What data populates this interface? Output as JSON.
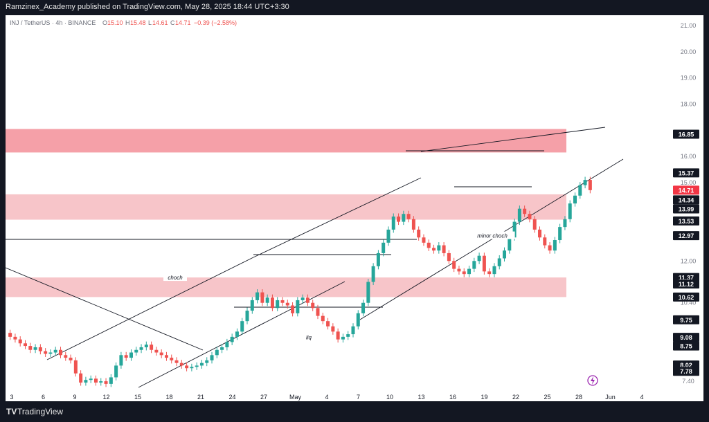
{
  "header": {
    "published_text": "Ramzinex_Academy published on TradingView.com, May 28, 2025 18:44 UTC+3:30"
  },
  "footer": {
    "brand_icon": "TV",
    "brand_text": "TradingView"
  },
  "symbol": {
    "pair": "INJ / TetherUS · 4h · BINANCE",
    "open_label": "O",
    "open": "15.10",
    "high_label": "H",
    "high": "15.48",
    "low_label": "L",
    "low": "14.61",
    "close_label": "C",
    "close": "14.71",
    "change": "−0.39 (−2.58%)"
  },
  "colors": {
    "up": "#26a69a",
    "down": "#ef5350",
    "zone": "#f7c5c9",
    "zone_strong": "#f5a0a8",
    "badge_dark": "#131722",
    "badge_red": "#f23645"
  },
  "chart_data": {
    "type": "candlestick",
    "interval": "4h",
    "x_ticks": [
      "3",
      "6",
      "9",
      "12",
      "15",
      "18",
      "21",
      "24",
      "27",
      "May",
      "4",
      "7",
      "10",
      "13",
      "16",
      "19",
      "22",
      "25",
      "28",
      "Jun",
      "4"
    ],
    "y_ticks": [
      "21.00",
      "20.00",
      "19.00",
      "18.00",
      "16.00",
      "15.00",
      "12.00",
      "10.40",
      "7.40"
    ],
    "ylim": [
      6.9,
      21.4
    ],
    "price_labels": [
      {
        "value": 16.85,
        "text": "16.85",
        "style": "dark"
      },
      {
        "value": 15.37,
        "text": "15.37",
        "style": "dark"
      },
      {
        "value": 14.71,
        "text": "14.71",
        "style": "red"
      },
      {
        "value": 14.34,
        "text": "14.34",
        "style": "dark"
      },
      {
        "value": 13.99,
        "text": "13.99",
        "style": "dark"
      },
      {
        "value": 13.53,
        "text": "13.53",
        "style": "dark"
      },
      {
        "value": 12.97,
        "text": "12.97",
        "style": "dark"
      },
      {
        "value": 11.37,
        "text": "11.37",
        "style": "dark"
      },
      {
        "value": 11.12,
        "text": "11.12",
        "style": "dark"
      },
      {
        "value": 10.62,
        "text": "10.62",
        "style": "dark"
      },
      {
        "value": 9.75,
        "text": "9.75",
        "style": "dark"
      },
      {
        "value": 9.08,
        "text": "9.08",
        "style": "dark"
      },
      {
        "value": 8.75,
        "text": "8.75",
        "style": "dark"
      },
      {
        "value": 8.02,
        "text": "8.02",
        "style": "dark"
      },
      {
        "value": 7.78,
        "text": "7.78",
        "style": "dark"
      }
    ],
    "zones": [
      {
        "low": 16.15,
        "high": 17.05,
        "style": "strong"
      },
      {
        "low": 13.58,
        "high": 14.55,
        "style": "light"
      },
      {
        "low": 10.62,
        "high": 11.37,
        "style": "light"
      }
    ],
    "annotations": [
      {
        "text": "choch",
        "price": 11.37
      },
      {
        "text": "liq",
        "price": 9.08
      },
      {
        "text": "minor choch",
        "price": 12.97
      }
    ],
    "closes": [
      9.1,
      9.0,
      8.85,
      8.75,
      8.6,
      8.7,
      8.55,
      8.45,
      8.5,
      8.6,
      8.4,
      8.3,
      8.2,
      7.7,
      7.35,
      7.45,
      7.5,
      7.35,
      7.4,
      7.3,
      7.55,
      8.0,
      8.4,
      8.3,
      8.5,
      8.6,
      8.7,
      8.8,
      8.6,
      8.5,
      8.4,
      8.3,
      8.2,
      8.1,
      8.0,
      7.9,
      7.95,
      8.0,
      8.1,
      8.2,
      8.4,
      8.6,
      8.7,
      8.9,
      9.1,
      9.3,
      9.7,
      10.1,
      10.5,
      10.8,
      10.4,
      10.6,
      10.2,
      10.5,
      10.4,
      10.3,
      10.0,
      10.5,
      10.6,
      10.4,
      10.2,
      9.9,
      9.7,
      9.5,
      9.3,
      9.0,
      9.1,
      9.2,
      9.5,
      10.0,
      10.4,
      11.2,
      11.8,
      12.3,
      12.7,
      13.2,
      13.7,
      13.5,
      13.8,
      13.6,
      13.2,
      12.9,
      12.7,
      12.5,
      12.4,
      12.6,
      12.3,
      12.0,
      11.7,
      11.6,
      11.5,
      11.7,
      12.0,
      12.2,
      11.6,
      11.5,
      11.8,
      12.1,
      12.4,
      12.9,
      13.5,
      14.0,
      13.8,
      13.6,
      13.2,
      12.9,
      12.6,
      12.4,
      12.8,
      13.3,
      13.6,
      14.2,
      14.5,
      14.9,
      15.1,
      14.71
    ]
  }
}
